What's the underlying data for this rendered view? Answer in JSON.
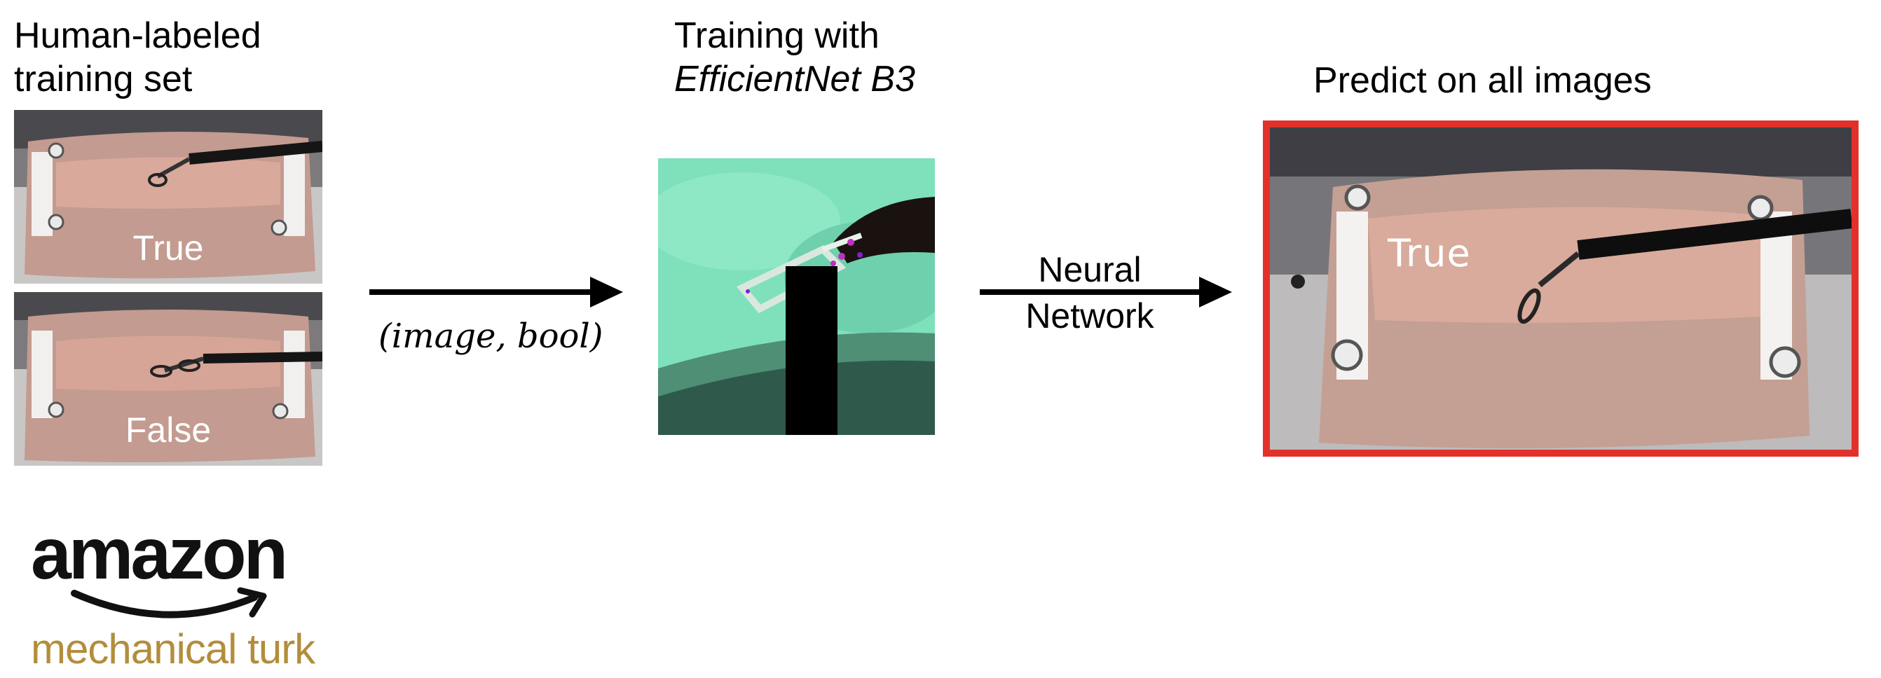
{
  "section_left": {
    "title_line1": "Human-labeled",
    "title_line2": "training set"
  },
  "samples": [
    {
      "label": "True"
    },
    {
      "label": "False"
    }
  ],
  "arrow_1": {
    "label": "(image, bool)"
  },
  "section_middle": {
    "title_line1": "Training with",
    "title_line2": "EfficientNet B3"
  },
  "arrow_2": {
    "label_line1": "Neural",
    "label_line2": "Network"
  },
  "section_right": {
    "title": "Predict on all images",
    "prediction_label": "True"
  },
  "logo": {
    "wordmark": "amazon",
    "subtitle": "mechanical turk"
  },
  "colors": {
    "highlight": "#e2312b",
    "logo_gold": "#b28d3c"
  }
}
